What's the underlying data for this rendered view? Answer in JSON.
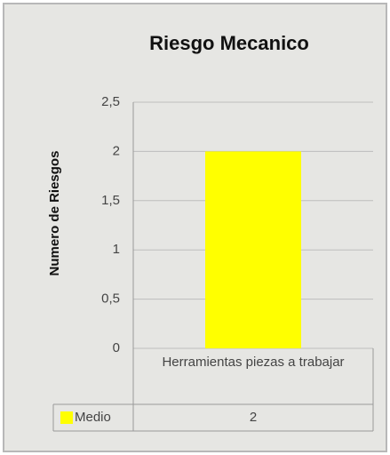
{
  "chart_data": {
    "type": "bar",
    "title": "Riesgo Mecanico",
    "y_label": "Numero de Riesgos",
    "categories": [
      "Herramientas piezas a trabajar"
    ],
    "series": [
      {
        "name": "Medio",
        "color": "#ffff00",
        "values": [
          2
        ]
      }
    ],
    "ylim": [
      0,
      2.5
    ],
    "yticks": [
      0,
      {
        "value": 0.5,
        "label": "0,5"
      },
      1,
      {
        "value": 1.5,
        "label": "1,5"
      },
      2,
      {
        "value": 2.5,
        "label": "2,5"
      }
    ],
    "grid": true,
    "data_table": true
  }
}
